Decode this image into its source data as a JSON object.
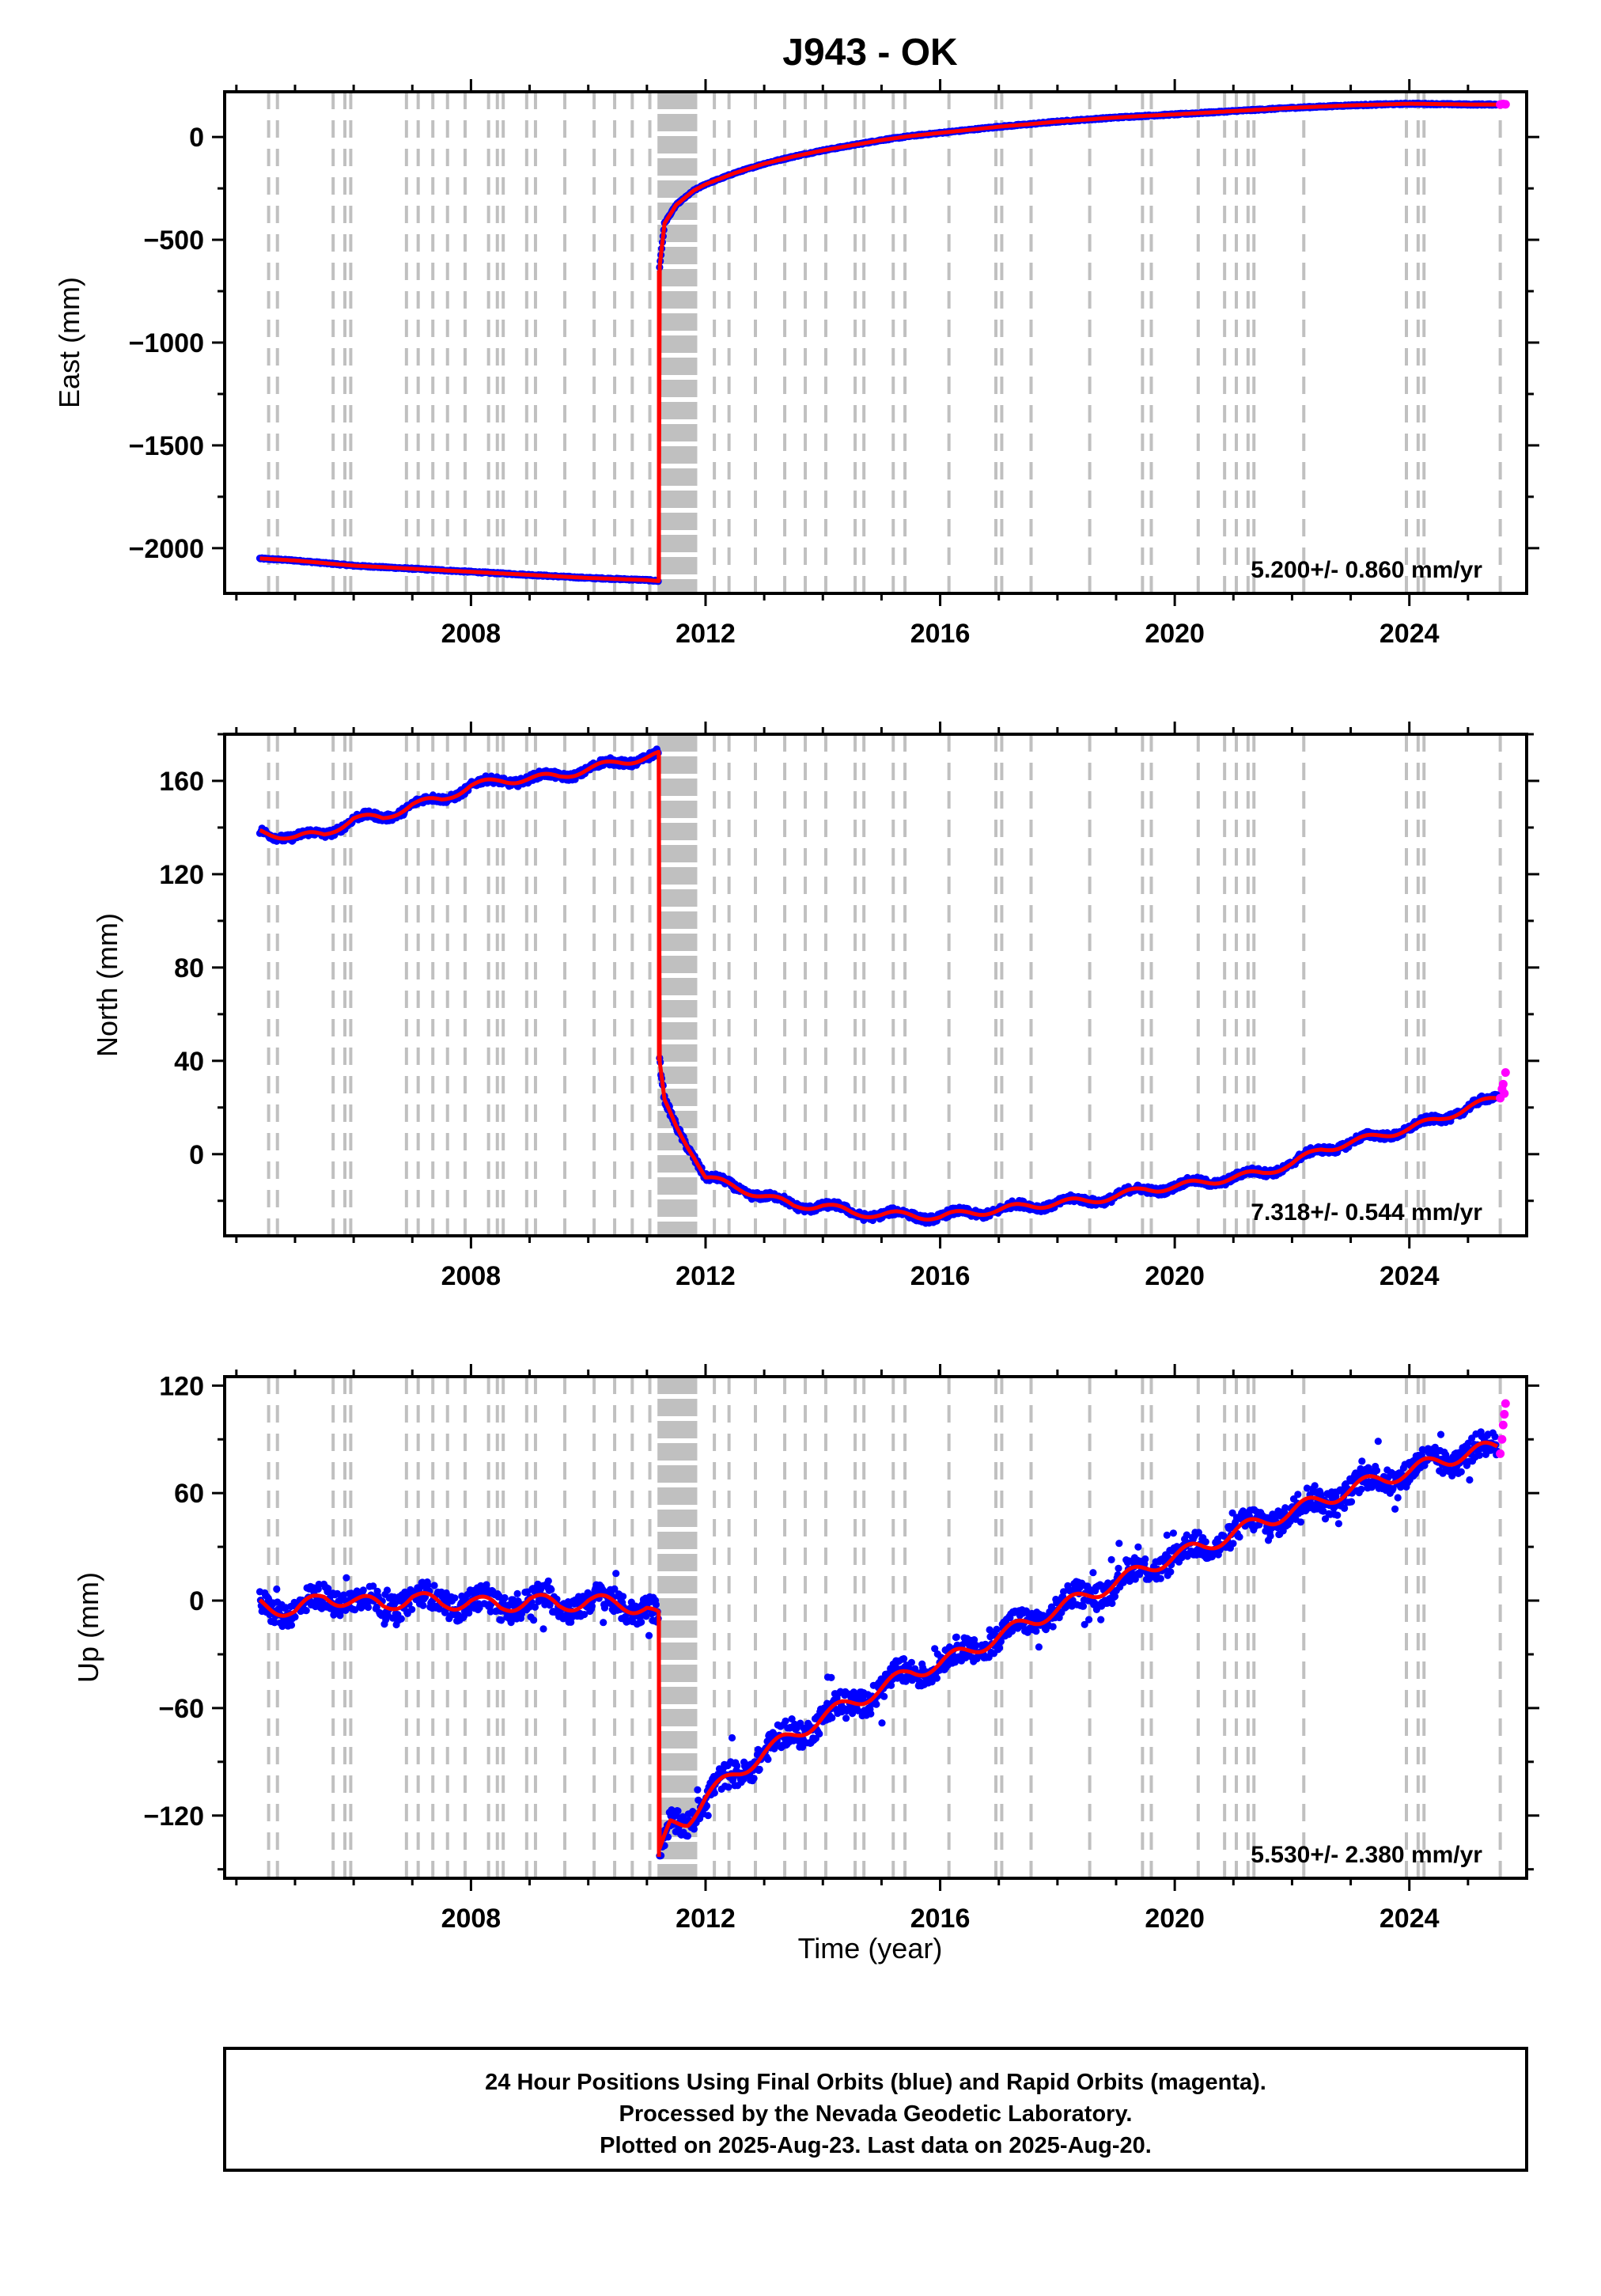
{
  "title": "J943 - OK",
  "xlabel": "Time (year)",
  "footer": {
    "line1": "24 Hour Positions Using Final Orbits (blue) and Rapid Orbits (magenta).",
    "line2": "Processed by the Nevada Geodetic Laboratory.",
    "line3": "Plotted on 2025-Aug-23. Last data on 2025-Aug-20."
  },
  "colors": {
    "final_orbits": "#0000ff",
    "rapid_orbits": "#ff00ff",
    "model_fit": "#ff0000",
    "event_lines": "#c0c0c0"
  },
  "chart_data": [
    {
      "type": "scatter",
      "component": "east",
      "ylabel": "East (mm)",
      "xlim": [
        2003.8,
        2026.0
      ],
      "ylim": [
        -2220,
        220
      ],
      "x_ticks": [
        2008,
        2012,
        2016,
        2020,
        2024
      ],
      "y_ticks": [
        -2000,
        -1500,
        -1000,
        -500,
        0
      ],
      "rate_label": "5.200+/- 0.860 mm/yr",
      "grid": false,
      "series": [
        {
          "name": "Final Orbits (blue)",
          "x": [
            2004.4,
            2005.0,
            2006.0,
            2007.0,
            2008.0,
            2009.0,
            2010.0,
            2011.0,
            2011.2,
            2011.21,
            2011.3,
            2011.5,
            2011.8,
            2012.0,
            2012.5,
            2013.0,
            2013.5,
            2014.0,
            2014.5,
            2015.0,
            2015.5,
            2016.0,
            2016.5,
            2017.0,
            2017.5,
            2018.0,
            2018.5,
            2019.0,
            2019.5,
            2020.0,
            2020.5,
            2021.0,
            2021.5,
            2022.0,
            2022.5,
            2023.0,
            2023.5,
            2024.0,
            2024.5,
            2025.0,
            2025.5
          ],
          "y": [
            -2050,
            -2060,
            -2085,
            -2100,
            -2115,
            -2130,
            -2145,
            -2155,
            -2160,
            -650,
            -420,
            -330,
            -260,
            -230,
            -175,
            -130,
            -95,
            -65,
            -40,
            -15,
            5,
            20,
            35,
            50,
            62,
            75,
            85,
            95,
            103,
            110,
            118,
            126,
            134,
            142,
            148,
            154,
            158,
            162,
            160,
            158,
            158
          ]
        },
        {
          "name": "Rapid Orbits (magenta)",
          "x": [
            2025.55,
            2025.6,
            2025.64
          ],
          "y": [
            158,
            161,
            159
          ]
        }
      ]
    },
    {
      "type": "scatter",
      "component": "north",
      "ylabel": "North (mm)",
      "xlim": [
        2003.8,
        2026.0
      ],
      "ylim": [
        -35,
        180
      ],
      "x_ticks": [
        2008,
        2012,
        2016,
        2020,
        2024
      ],
      "y_ticks": [
        0,
        40,
        80,
        120,
        160
      ],
      "rate_label": "7.318+/- 0.544 mm/yr",
      "grid": false,
      "series": [
        {
          "name": "Final Orbits (blue)",
          "x": [
            2004.4,
            2005.0,
            2005.5,
            2006.0,
            2006.5,
            2007.0,
            2007.5,
            2008.0,
            2008.5,
            2009.0,
            2009.5,
            2010.0,
            2010.5,
            2011.0,
            2011.2,
            2011.21,
            2011.3,
            2011.5,
            2011.8,
            2012.0,
            2012.5,
            2013.0,
            2013.5,
            2014.0,
            2014.5,
            2015.0,
            2015.5,
            2016.0,
            2016.5,
            2017.0,
            2017.5,
            2018.0,
            2018.5,
            2019.0,
            2019.5,
            2020.0,
            2020.5,
            2021.0,
            2021.5,
            2022.0,
            2022.5,
            2023.0,
            2023.5,
            2024.0,
            2024.5,
            2025.0,
            2025.5
          ],
          "y": [
            138,
            136,
            137,
            144,
            144,
            150,
            152,
            158,
            160,
            161,
            162,
            165,
            168,
            170,
            171,
            40,
            22,
            12,
            0,
            -10,
            -14,
            -18,
            -22,
            -22,
            -25,
            -26,
            -26,
            -27,
            -25,
            -24,
            -22,
            -21,
            -20,
            -18,
            -15,
            -14,
            -12,
            -10,
            -8,
            -4,
            2,
            5,
            8,
            11,
            15,
            20,
            24
          ]
        },
        {
          "name": "Rapid Orbits (magenta)",
          "x": [
            2025.55,
            2025.58,
            2025.6,
            2025.62,
            2025.64
          ],
          "y": [
            24,
            28,
            30,
            26,
            35
          ]
        }
      ]
    },
    {
      "type": "scatter",
      "component": "up",
      "ylabel": "Up (mm)",
      "xlim": [
        2003.8,
        2026.0
      ],
      "ylim": [
        -155,
        125
      ],
      "x_ticks": [
        2008,
        2012,
        2016,
        2020,
        2024
      ],
      "y_ticks": [
        -120,
        -60,
        0,
        60,
        120
      ],
      "rate_label": "5.530+/- 2.380 mm/yr",
      "grid": false,
      "series": [
        {
          "name": "Final Orbits (blue)",
          "x": [
            2004.4,
            2005.0,
            2005.5,
            2006.0,
            2006.5,
            2007.0,
            2007.5,
            2008.0,
            2008.5,
            2009.0,
            2009.5,
            2010.0,
            2010.5,
            2011.0,
            2011.2,
            2011.21,
            2011.4,
            2011.7,
            2012.0,
            2012.5,
            2013.0,
            2013.5,
            2014.0,
            2014.5,
            2015.0,
            2015.5,
            2016.0,
            2016.5,
            2017.0,
            2017.5,
            2018.0,
            2018.5,
            2019.0,
            2019.5,
            2020.0,
            2020.5,
            2021.0,
            2021.5,
            2022.0,
            2022.5,
            2023.0,
            2023.5,
            2024.0,
            2024.5,
            2025.0,
            2025.5
          ],
          "y": [
            -2,
            -6,
            2,
            0,
            -3,
            2,
            -2,
            0,
            -4,
            1,
            -3,
            0,
            -2,
            -4,
            -10,
            -143,
            -125,
            -122,
            -110,
            -97,
            -85,
            -75,
            -65,
            -57,
            -49,
            -40,
            -35,
            -28,
            -20,
            -12,
            -5,
            3,
            10,
            18,
            25,
            30,
            38,
            44,
            50,
            56,
            62,
            68,
            72,
            78,
            82,
            86
          ]
        },
        {
          "name": "Rapid Orbits (magenta)",
          "x": [
            2025.55,
            2025.58,
            2025.6,
            2025.62,
            2025.64
          ],
          "y": [
            82,
            90,
            98,
            104,
            110
          ]
        }
      ]
    }
  ]
}
